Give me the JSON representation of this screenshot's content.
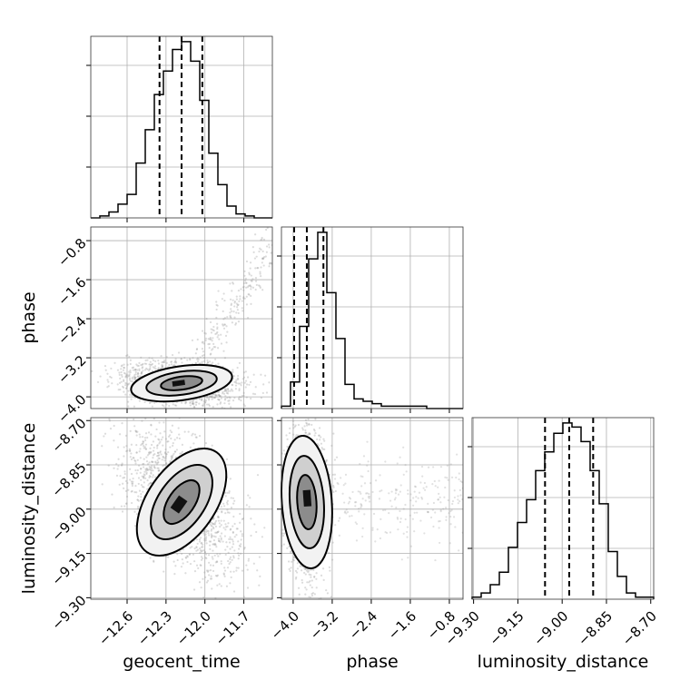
{
  "chart_data": {
    "type": "corner",
    "parameters": [
      "geocent_time",
      "phase",
      "luminosity_distance"
    ],
    "axis_labels": {
      "geocent_time": "geocent_time",
      "phase": "phase",
      "luminosity_distance": "luminosity_distance"
    },
    "ranges": {
      "geocent_time": [
        -12.88,
        -11.48
      ],
      "phase": [
        -4.24,
        -0.52
      ],
      "luminosity_distance": [
        -9.305,
        -8.69
      ]
    },
    "ticks": {
      "geocent_time": [
        -12.6,
        -12.3,
        -12.0,
        -11.7
      ],
      "phase": [
        -4.0,
        -3.2,
        -2.4,
        -1.6,
        -0.8
      ],
      "luminosity_distance": [
        -9.3,
        -9.15,
        -9.0,
        -8.85,
        -8.7
      ]
    },
    "tick_labels": {
      "geocent_time": [
        "−12.6",
        "−12.3",
        "−12.0",
        "−11.7"
      ],
      "phase": [
        "−4.0",
        "−3.2",
        "−2.4",
        "−1.6",
        "−0.8"
      ],
      "luminosity_distance": [
        "−9.30",
        "−9.15",
        "−9.00",
        "−8.85",
        "−8.70"
      ]
    },
    "quantiles": {
      "geocent_time": [
        -12.35,
        -12.18,
        -12.02
      ],
      "phase": [
        -3.98,
        -3.72,
        -3.38
      ],
      "luminosity_distance": [
        -9.058,
        -8.976,
        -8.895
      ]
    },
    "histograms": {
      "geocent_time": [
        0,
        1,
        3,
        7,
        12,
        28,
        45,
        63,
        75,
        86,
        90,
        80,
        60,
        33,
        17,
        6,
        2,
        1,
        0,
        0
      ],
      "phase": [
        1,
        11,
        34,
        62,
        73,
        48,
        29,
        10,
        4,
        3,
        2,
        1,
        1,
        1,
        1,
        1,
        0,
        0,
        0,
        0
      ],
      "luminosity_distance": [
        1,
        3,
        7,
        13,
        25,
        37,
        48,
        62,
        71,
        80,
        85,
        83,
        76,
        62,
        46,
        23,
        11,
        3,
        1,
        1
      ]
    },
    "scatter_centers": {
      "geocent_time_phase": [
        -12.18,
        -3.72
      ],
      "geocent_time_luminosity_distance": [
        -12.18,
        -8.976
      ],
      "phase_luminosity_distance": [
        -3.72,
        -8.976
      ]
    }
  }
}
